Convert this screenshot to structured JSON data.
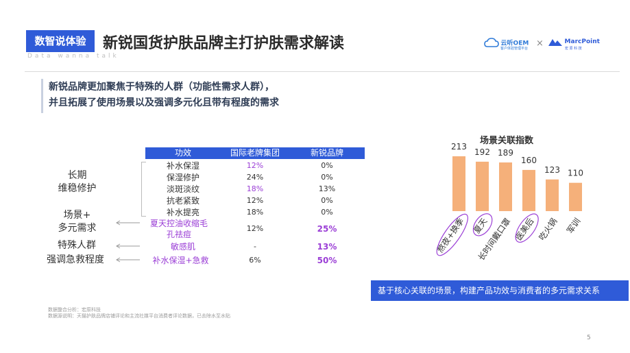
{
  "header": {
    "tag": "数智说体验",
    "title": "新锐国货护肤品牌主打护肤需求解读",
    "subtitle": "Data wanna talk",
    "logo_left": "云听OEM",
    "logo_left_sub": "客户体验管理平台",
    "logo_sep": "×",
    "logo_right": "MarcPoint",
    "logo_right_sub": "宏 原 科 技"
  },
  "lead": {
    "line1": "新锐品牌更加聚焦于特殊的人群（功能性需求人群），",
    "line2": "并且拓展了使用场景以及强调多元化且带有程度的需求"
  },
  "table": {
    "headers": [
      "功效",
      "国际老牌集团",
      "新锐品牌"
    ],
    "rows": [
      {
        "effect": "补水保湿",
        "intl": "12%",
        "new": "0%"
      },
      {
        "effect": "保湿修护",
        "intl": "24%",
        "new": "0%"
      },
      {
        "effect": "淡斑淡纹",
        "intl": "18%",
        "new": "13%"
      },
      {
        "effect": "抗老紧致",
        "intl": "12%",
        "new": "0%"
      },
      {
        "effect": "补水提亮",
        "intl": "18%",
        "new": "0%"
      },
      {
        "effect": "夏天控油收缩毛孔祛痘",
        "effect_l1": "夏天控油收缩毛",
        "effect_l2": "孔祛痘",
        "intl": "12%",
        "new": "25%"
      },
      {
        "effect": "敏感肌",
        "intl": "-",
        "new": "13%"
      },
      {
        "effect": "补水保湿+急救",
        "intl": "6%",
        "new": "50%"
      }
    ],
    "groups": {
      "long_term_l1": "长期",
      "long_term_l2": "维稳修护",
      "scene_l1": "场景+",
      "scene_l2": "多元需求",
      "special": "特殊人群",
      "degree": "强调急救程度"
    }
  },
  "chart_data": {
    "type": "bar",
    "title": "场景关联指数",
    "categories": [
      "熬夜+换季",
      "夏天",
      "长时间戴口罩",
      "医美后",
      "吃火锅",
      "军训"
    ],
    "values": [
      213,
      192,
      189,
      160,
      123,
      110
    ],
    "circled": [
      "熬夜+换季",
      "夏天",
      "医美后"
    ],
    "colors": {
      "bar": "#f5b07a",
      "circle": "#9b3fd6"
    },
    "xlabel": "",
    "ylabel": "",
    "ylim": [
      0,
      213
    ],
    "grid": false
  },
  "note": "基于核心关联的场景，构建产品功效与消费者的多元需求关系",
  "footer": {
    "line1": "数据整合分析：宏原科技",
    "line2": "数据源说明：天猫护肤品牌店铺评论和主流社媒平台消费者评论数据，已去除水至水贴"
  },
  "page_number": "5",
  "colors": {
    "brand_blue": "#2f5bd8",
    "highlight_purple": "#9b3fd6",
    "bar_orange": "#f5b07a"
  }
}
